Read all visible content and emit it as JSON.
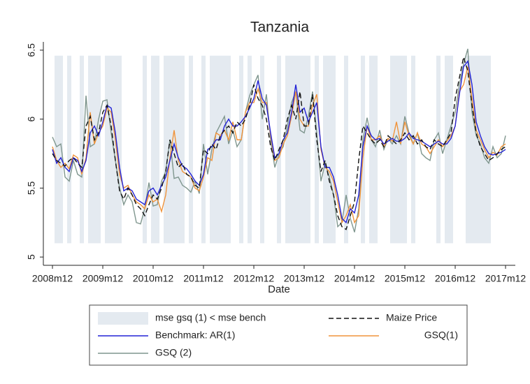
{
  "chart_data": {
    "type": "line",
    "title": "Tanzania",
    "x_label": "Date",
    "x": [
      0,
      1,
      2,
      3,
      4,
      5,
      6,
      7,
      8,
      9,
      10,
      11,
      12,
      13,
      14,
      15,
      16,
      17,
      18,
      19,
      20,
      21,
      22,
      23,
      24,
      25,
      26,
      27,
      28,
      29,
      30,
      31,
      32,
      33,
      34,
      35,
      36,
      37,
      38,
      39,
      40,
      41,
      42,
      43,
      44,
      45,
      46,
      47,
      48,
      49,
      50,
      51,
      52,
      53,
      54,
      55,
      56,
      57,
      58,
      59,
      60,
      61,
      62,
      63,
      64,
      65,
      66,
      67,
      68,
      69,
      70,
      71,
      72,
      73,
      74,
      75,
      76,
      77,
      78,
      79,
      80,
      81,
      82,
      83,
      84,
      85,
      86,
      87,
      88,
      89,
      90,
      91,
      92,
      93,
      94,
      95,
      96,
      97,
      98,
      99,
      100,
      101,
      102,
      103,
      104,
      105,
      106,
      107,
      108
    ],
    "xlim": [
      -2.17,
      110.33
    ],
    "xticks": [
      {
        "value": 0,
        "label": "2008m12"
      },
      {
        "value": 12,
        "label": "2009m12"
      },
      {
        "value": 24,
        "label": "2010m12"
      },
      {
        "value": 36,
        "label": "2011m12"
      },
      {
        "value": 48,
        "label": "2012m12"
      },
      {
        "value": 60,
        "label": "2013m12"
      },
      {
        "value": 72,
        "label": "2014m12"
      },
      {
        "value": 84,
        "label": "2015m12"
      },
      {
        "value": 96,
        "label": "2016m12"
      },
      {
        "value": 108,
        "label": "2017m12"
      }
    ],
    "ylim": [
      4.94,
      6.56
    ],
    "yticks": [
      5,
      5.5,
      6,
      6.5
    ],
    "shade": {
      "name": "mse gsq (1) < mse bench",
      "color": "#e4eaf0",
      "ylim": [
        5.1,
        6.46
      ],
      "periods": [
        [
          1,
          2
        ],
        [
          4,
          4
        ],
        [
          7,
          7
        ],
        [
          9,
          11
        ],
        [
          13,
          16
        ],
        [
          22,
          22
        ],
        [
          24,
          25
        ],
        [
          27,
          31
        ],
        [
          33,
          33
        ],
        [
          36,
          36
        ],
        [
          38,
          42
        ],
        [
          45,
          45
        ],
        [
          47,
          47
        ],
        [
          50,
          50
        ],
        [
          54,
          54
        ],
        [
          56,
          61
        ],
        [
          63,
          63
        ],
        [
          65,
          67
        ],
        [
          70,
          70
        ],
        [
          74,
          74
        ],
        [
          76,
          77
        ],
        [
          81,
          84
        ],
        [
          86,
          86
        ],
        [
          92,
          92
        ],
        [
          94,
          95
        ],
        [
          99,
          104
        ]
      ]
    },
    "series": [
      {
        "name": "Maize Price",
        "color": "#111111",
        "dashed": true,
        "values": [
          5.75,
          5.7,
          5.68,
          5.66,
          5.7,
          5.72,
          5.68,
          5.65,
          5.95,
          6.02,
          5.85,
          5.9,
          6.05,
          6.1,
          5.95,
          5.7,
          5.48,
          5.42,
          5.5,
          5.45,
          5.38,
          5.35,
          5.3,
          5.38,
          5.45,
          5.42,
          5.5,
          5.62,
          5.85,
          5.75,
          5.65,
          5.68,
          5.6,
          5.58,
          5.52,
          5.5,
          5.78,
          5.75,
          5.82,
          5.78,
          5.88,
          5.92,
          5.95,
          5.9,
          5.98,
          5.95,
          6.0,
          6.1,
          6.25,
          6.15,
          6.1,
          6.0,
          5.8,
          5.7,
          5.78,
          5.85,
          6.0,
          6.1,
          6.0,
          6.2,
          5.95,
          5.95,
          6.18,
          5.85,
          5.62,
          5.7,
          5.55,
          5.45,
          5.3,
          5.22,
          5.2,
          5.3,
          5.4,
          5.7,
          5.95,
          5.9,
          5.85,
          5.82,
          5.85,
          5.8,
          5.88,
          5.85,
          5.82,
          5.85,
          5.9,
          5.85,
          5.88,
          5.82,
          5.85,
          5.8,
          5.78,
          5.85,
          5.82,
          5.8,
          5.85,
          5.9,
          6.15,
          6.3,
          6.45,
          6.35,
          6.1,
          5.9,
          5.8,
          5.75,
          5.7,
          5.72,
          5.75,
          5.78,
          5.8
        ]
      },
      {
        "name": "Benchmark: AR(1)",
        "color": "#2323d6",
        "dashed": false,
        "values": [
          5.78,
          5.68,
          5.72,
          5.65,
          5.62,
          5.72,
          5.7,
          5.62,
          5.7,
          5.9,
          5.95,
          5.88,
          5.98,
          6.1,
          6.08,
          5.9,
          5.65,
          5.48,
          5.5,
          5.48,
          5.42,
          5.4,
          5.38,
          5.48,
          5.5,
          5.45,
          5.52,
          5.58,
          5.7,
          5.82,
          5.72,
          5.66,
          5.64,
          5.6,
          5.55,
          5.52,
          5.6,
          5.78,
          5.8,
          5.85,
          5.85,
          5.95,
          6.0,
          5.95,
          5.95,
          5.98,
          6.02,
          6.08,
          6.15,
          6.28,
          6.15,
          6.1,
          5.9,
          5.72,
          5.75,
          5.85,
          5.9,
          6.05,
          6.25,
          6.05,
          6.08,
          5.98,
          6.05,
          6.12,
          5.8,
          5.65,
          5.65,
          5.58,
          5.45,
          5.28,
          5.25,
          5.35,
          5.32,
          5.45,
          5.8,
          5.95,
          5.88,
          5.85,
          5.86,
          5.82,
          5.84,
          5.86,
          5.84,
          5.84,
          5.86,
          5.9,
          5.86,
          5.85,
          5.84,
          5.82,
          5.8,
          5.82,
          5.84,
          5.82,
          5.82,
          5.86,
          5.95,
          6.18,
          6.38,
          6.42,
          6.25,
          5.98,
          5.88,
          5.8,
          5.75,
          5.74,
          5.75,
          5.76,
          5.78
        ]
      },
      {
        "name": "GSQ(1)",
        "color": "#f0943c",
        "dashed": false,
        "values": [
          5.8,
          5.7,
          5.65,
          5.68,
          5.64,
          5.74,
          5.72,
          5.6,
          5.72,
          6.05,
          5.82,
          5.9,
          5.95,
          6.08,
          6.05,
          5.85,
          5.6,
          5.5,
          5.52,
          5.45,
          5.4,
          5.38,
          5.35,
          5.45,
          5.4,
          5.42,
          5.33,
          5.45,
          5.72,
          5.92,
          5.7,
          5.62,
          5.6,
          5.58,
          5.5,
          5.48,
          5.58,
          5.72,
          5.7,
          5.9,
          5.88,
          5.92,
          5.85,
          5.98,
          5.85,
          5.85,
          6.05,
          6.12,
          6.12,
          6.22,
          6.12,
          6.12,
          5.88,
          5.7,
          5.72,
          5.82,
          5.88,
          6.02,
          6.2,
          6.0,
          5.95,
          5.95,
          6.1,
          6.18,
          5.78,
          5.65,
          5.62,
          5.55,
          5.4,
          5.25,
          5.3,
          5.38,
          5.25,
          5.3,
          5.72,
          5.95,
          5.85,
          5.85,
          5.88,
          5.8,
          5.86,
          5.84,
          5.98,
          5.82,
          5.98,
          5.88,
          5.82,
          5.9,
          5.82,
          5.8,
          5.75,
          5.8,
          5.85,
          5.8,
          5.84,
          5.88,
          5.95,
          6.2,
          6.25,
          6.38,
          6.15,
          5.92,
          5.85,
          5.78,
          5.72,
          5.76,
          5.74,
          5.8,
          5.82
        ]
      },
      {
        "name": "GSQ (2)",
        "color": "#7f968e",
        "dashed": false,
        "values": [
          5.87,
          5.8,
          5.82,
          5.58,
          5.55,
          5.7,
          5.6,
          5.58,
          6.17,
          5.8,
          5.82,
          6.0,
          6.13,
          6.14,
          5.9,
          5.7,
          5.5,
          5.38,
          5.45,
          5.4,
          5.25,
          5.24,
          5.35,
          5.54,
          5.37,
          5.38,
          5.55,
          5.62,
          5.85,
          5.57,
          5.58,
          5.52,
          5.5,
          5.47,
          5.55,
          5.46,
          5.82,
          5.6,
          5.78,
          5.9,
          5.96,
          6.02,
          5.82,
          5.92,
          5.8,
          5.85,
          6.05,
          6.17,
          6.25,
          6.32,
          6.0,
          6.18,
          5.85,
          5.65,
          5.75,
          5.8,
          5.95,
          6.12,
          6.2,
          5.92,
          5.9,
          6.02,
          6.2,
          5.9,
          5.55,
          5.68,
          5.58,
          5.45,
          5.22,
          5.25,
          5.45,
          5.28,
          5.18,
          5.35,
          5.85,
          6.01,
          5.85,
          5.8,
          5.92,
          5.78,
          5.86,
          5.82,
          5.88,
          5.82,
          6.02,
          5.9,
          5.82,
          5.9,
          5.75,
          5.72,
          5.7,
          5.85,
          5.9,
          5.75,
          5.85,
          5.95,
          6.05,
          6.25,
          6.4,
          6.51,
          6.05,
          5.88,
          5.82,
          5.72,
          5.68,
          5.8,
          5.72,
          5.75,
          5.88
        ]
      }
    ]
  }
}
